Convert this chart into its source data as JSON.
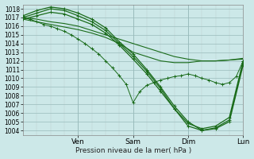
{
  "xlabel": "Pression niveau de la mer( hPa )",
  "bg_color": "#cce8e8",
  "grid_major_color": "#99bbbb",
  "grid_minor_color": "#bbcccc",
  "line_color": "#1a6b1a",
  "xlim": [
    0,
    96
  ],
  "ylim": [
    1003.5,
    1018.5
  ],
  "yticks": [
    1004,
    1005,
    1006,
    1007,
    1008,
    1009,
    1010,
    1011,
    1012,
    1013,
    1014,
    1015,
    1016,
    1017,
    1018
  ],
  "xtick_positions": [
    24,
    48,
    72,
    96
  ],
  "xtick_labels": [
    "Ven",
    "Sam",
    "Dim",
    "Lun"
  ],
  "lines": [
    {
      "x": [
        0,
        6,
        12,
        18,
        24,
        30,
        36,
        42,
        48,
        54,
        60,
        66,
        72,
        78,
        84,
        90,
        96
      ],
      "y": [
        1017.0,
        1017.5,
        1018.0,
        1017.8,
        1017.2,
        1016.5,
        1015.5,
        1014.0,
        1012.5,
        1010.8,
        1008.8,
        1006.5,
        1004.8,
        1004.2,
        1004.5,
        1005.5,
        1012.0
      ],
      "lw": 0.9,
      "marker": "+",
      "ms": 2.5,
      "ls": "-"
    },
    {
      "x": [
        0,
        6,
        12,
        18,
        24,
        30,
        36,
        42,
        48,
        54,
        60,
        66,
        72,
        78,
        84,
        90,
        96
      ],
      "y": [
        1017.2,
        1017.8,
        1018.2,
        1018.0,
        1017.5,
        1016.8,
        1015.8,
        1014.2,
        1012.8,
        1011.0,
        1009.0,
        1006.8,
        1005.0,
        1004.0,
        1004.2,
        1005.0,
        1011.5
      ],
      "lw": 0.9,
      "marker": "+",
      "ms": 2.5,
      "ls": "-"
    },
    {
      "x": [
        0,
        6,
        12,
        18,
        24,
        30,
        36,
        42,
        48,
        54,
        60,
        66,
        72,
        78,
        84,
        90,
        96
      ],
      "y": [
        1016.8,
        1017.2,
        1017.6,
        1017.4,
        1016.8,
        1016.2,
        1015.2,
        1013.8,
        1012.2,
        1010.5,
        1008.5,
        1006.5,
        1004.5,
        1004.0,
        1004.3,
        1005.2,
        1011.8
      ],
      "lw": 0.9,
      "marker": "+",
      "ms": 2.5,
      "ls": "-"
    },
    {
      "x": [
        0,
        6,
        12,
        18,
        24,
        30,
        36,
        42,
        48,
        54,
        60,
        66,
        72,
        78,
        84,
        90,
        96
      ],
      "y": [
        1017.0,
        1016.8,
        1016.5,
        1016.3,
        1016.0,
        1015.5,
        1015.0,
        1014.5,
        1014.0,
        1013.5,
        1013.0,
        1012.5,
        1012.2,
        1012.0,
        1012.0,
        1012.1,
        1012.3
      ],
      "lw": 0.8,
      "marker": null,
      "ms": 0,
      "ls": "-"
    },
    {
      "x": [
        0,
        6,
        12,
        18,
        24,
        30,
        36,
        42,
        48,
        54,
        60,
        66,
        72,
        78,
        84,
        90,
        96
      ],
      "y": [
        1016.8,
        1016.5,
        1016.2,
        1015.9,
        1015.6,
        1015.2,
        1014.7,
        1014.0,
        1013.0,
        1012.5,
        1012.0,
        1011.8,
        1011.8,
        1012.0,
        1012.0,
        1012.1,
        1012.2
      ],
      "lw": 0.8,
      "marker": null,
      "ms": 0,
      "ls": "-"
    },
    {
      "x": [
        0,
        3,
        6,
        9,
        12,
        15,
        18,
        21,
        24,
        27,
        30,
        33,
        36,
        39,
        42,
        45,
        48,
        51,
        54,
        57,
        60,
        63,
        66,
        69,
        72,
        75,
        78,
        81,
        84,
        87,
        90,
        93,
        96
      ],
      "y": [
        1017.0,
        1016.8,
        1016.5,
        1016.2,
        1016.0,
        1015.7,
        1015.4,
        1015.0,
        1014.5,
        1014.0,
        1013.4,
        1012.8,
        1012.0,
        1011.2,
        1010.3,
        1009.3,
        1007.2,
        1008.5,
        1009.2,
        1009.5,
        1009.8,
        1010.0,
        1010.2,
        1010.3,
        1010.5,
        1010.3,
        1010.0,
        1009.8,
        1009.5,
        1009.3,
        1009.5,
        1010.2,
        1012.0
      ],
      "lw": 0.7,
      "marker": "+",
      "ms": 2.5,
      "ls": "-"
    }
  ]
}
